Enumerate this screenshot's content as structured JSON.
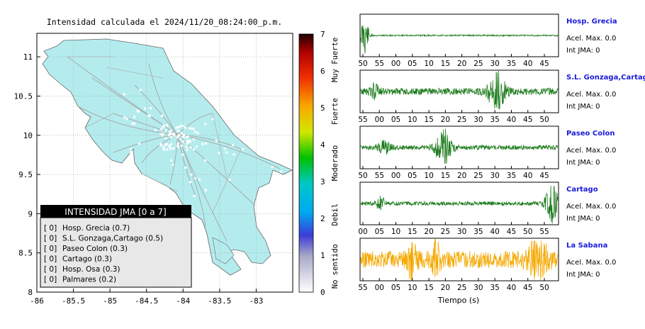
{
  "title": "Intensidad calculada el 2024/11/20_08:24:00_p.m.",
  "map": {
    "x_ticks": [
      "-86",
      "-85.5",
      "-85",
      "-84.5",
      "-84",
      "-83.5",
      "-83"
    ],
    "y_ticks": [
      "11",
      "10.5",
      "10",
      "9.5",
      "9",
      "8.5",
      "8"
    ],
    "xlim": [
      -86,
      -82.5
    ],
    "ylim": [
      8,
      11.3
    ],
    "land_color": "#b4ecee",
    "station_color": "#ffffff"
  },
  "colorbar": {
    "ticks": [
      "0",
      "1",
      "2",
      "3",
      "4",
      "5",
      "6",
      "7"
    ],
    "labels": [
      "No sentido",
      "Debil",
      "Moderado",
      "Fuerte",
      "Muy Fuerte"
    ]
  },
  "legend": {
    "title": "INTENSIDAD JMA [0 a 7]",
    "items": [
      {
        "value": "[ 0]",
        "name": "Hosp. Grecia (0.7)"
      },
      {
        "value": "[ 0]",
        "name": "S.L. Gonzaga,Cartago (0.5)"
      },
      {
        "value": "[ 0]",
        "name": "Paseo Colon (0.3)"
      },
      {
        "value": "[ 0]",
        "name": "Cartago (0.3)"
      },
      {
        "value": "[ 0]",
        "name": "Hosp. Osa (0.3)"
      },
      {
        "value": "[ 0]",
        "name": "Palmares (0.2)"
      }
    ]
  },
  "chart_data": [
    {
      "type": "heatmap",
      "title": "Intensidad calculada el 2024/11/20_08:24:00_p.m.",
      "xlim": [
        -86,
        -82.5
      ],
      "ylim": [
        8,
        11.3
      ],
      "legend_title": "INTENSIDAD JMA [0 a 7]",
      "legend_placement": "bottom-left",
      "stations": [
        {
          "name": "Hosp. Grecia",
          "intensity": 0.7,
          "jma": 0
        },
        {
          "name": "S.L. Gonzaga,Cartago",
          "intensity": 0.5,
          "jma": 0
        },
        {
          "name": "Paseo Colon",
          "intensity": 0.3,
          "jma": 0
        },
        {
          "name": "Cartago",
          "intensity": 0.3,
          "jma": 0
        },
        {
          "name": "Hosp. Osa",
          "intensity": 0.3,
          "jma": 0
        },
        {
          "name": "Palmares",
          "intensity": 0.2,
          "jma": 0
        }
      ]
    },
    {
      "type": "line",
      "xlabel": "Tiempo (s)",
      "panels": [
        {
          "name": "Hosp. Grecia",
          "accel_label": "Acel. Max. 0.0",
          "int_label": "Int JMA: 0",
          "color": "#1a7a1a",
          "ticks": [
            "50",
            "55",
            "00",
            "05",
            "10",
            "15",
            "20",
            "25",
            "30",
            "35",
            "40",
            "45"
          ],
          "events": [
            {
              "t": 0.02,
              "amp": 1.0,
              "w": 0.02
            }
          ],
          "noise": 0.04
        },
        {
          "name": "S.L. Gonzaga,Cartago",
          "accel_label": "Acel. Max. 0.0",
          "int_label": "Int JMA: 0",
          "color": "#1a7a1a",
          "ticks": [
            "55",
            "00",
            "05",
            "10",
            "15",
            "20",
            "25",
            "30",
            "35",
            "40",
            "45",
            "50"
          ],
          "events": [
            {
              "t": 0.07,
              "amp": 0.35,
              "w": 0.02
            },
            {
              "t": 0.69,
              "amp": 1.0,
              "w": 0.04
            }
          ],
          "noise": 0.18
        },
        {
          "name": "Paseo Colon",
          "accel_label": "Acel. Max. 0.0",
          "int_label": "Int JMA: 0",
          "color": "#1a7a1a",
          "ticks": [
            "50",
            "55",
            "00",
            "05",
            "10",
            "15",
            "20",
            "25",
            "30",
            "35",
            "40",
            "45"
          ],
          "events": [
            {
              "t": 0.12,
              "amp": 0.35,
              "w": 0.03
            },
            {
              "t": 0.42,
              "amp": 1.0,
              "w": 0.04
            }
          ],
          "noise": 0.12
        },
        {
          "name": "Cartago",
          "accel_label": "Acel. Max. 0.0",
          "int_label": "Int JMA: 0",
          "color": "#1a7a1a",
          "ticks": [
            "00",
            "05",
            "10",
            "15",
            "20",
            "25",
            "30",
            "35",
            "40",
            "45",
            "50",
            "55"
          ],
          "events": [
            {
              "t": 0.1,
              "amp": 0.35,
              "w": 0.02
            },
            {
              "t": 0.97,
              "amp": 1.0,
              "w": 0.03
            }
          ],
          "noise": 0.1
        },
        {
          "name": "La Sabana",
          "accel_label": "Acel. Max. 0.0",
          "int_label": "Int JMA: 0",
          "color": "#f5a800",
          "ticks": [
            "55",
            "00",
            "05",
            "10",
            "15",
            "20",
            "25",
            "30",
            "35",
            "40",
            "45",
            "50"
          ],
          "events": [
            {
              "t": 0.26,
              "amp": 0.9,
              "w": 0.02
            },
            {
              "t": 0.38,
              "amp": 0.8,
              "w": 0.02
            },
            {
              "t": 0.9,
              "amp": 0.8,
              "w": 0.05
            }
          ],
          "noise": 0.45
        }
      ]
    }
  ]
}
